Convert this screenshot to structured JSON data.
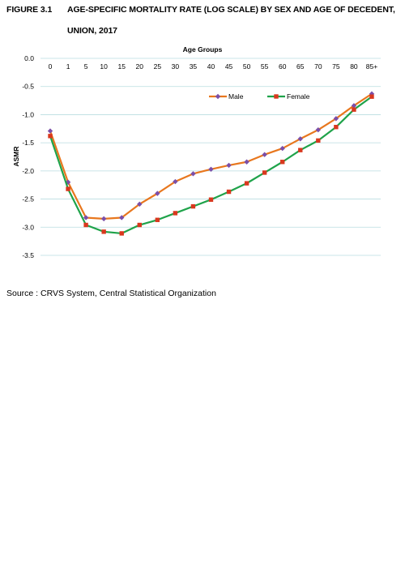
{
  "figure": {
    "label": "FIGURE 3.1",
    "title_line1": "AGE-SPECIFIC MORTALITY RATE (LOG SCALE) BY SEX AND AGE OF DECEDENT,",
    "title_line2": "UNION, 2017"
  },
  "source": "Source : CRVS System, Central Statistical Organization",
  "chart_data": {
    "type": "line",
    "xlabel": "Age Groups",
    "ylabel": "ASMR",
    "categories": [
      "0",
      "1",
      "5",
      "10",
      "15",
      "20",
      "25",
      "30",
      "35",
      "40",
      "45",
      "50",
      "55",
      "60",
      "65",
      "70",
      "75",
      "80",
      "85+"
    ],
    "yticks": [
      "0.0",
      "-0.5",
      "-1.0",
      "-1.5",
      "-2.0",
      "-2.5",
      "-3.0",
      "-3.5"
    ],
    "ylim": [
      -3.5,
      0.0
    ],
    "grid": true,
    "legend_position": "top-right",
    "series": [
      {
        "name": "Male",
        "color": "#E8771E",
        "marker_color": "#7B4FA8",
        "values": [
          -1.29,
          -2.2,
          -2.83,
          -2.85,
          -2.83,
          -2.59,
          -2.4,
          -2.19,
          -2.05,
          -1.97,
          -1.9,
          -1.84,
          -1.71,
          -1.6,
          -1.43,
          -1.27,
          -1.07,
          -0.84,
          -0.63
        ]
      },
      {
        "name": "Female",
        "color": "#1FA34A",
        "marker_color": "#D9381E",
        "values": [
          -1.38,
          -2.32,
          -2.96,
          -3.08,
          -3.11,
          -2.96,
          -2.87,
          -2.75,
          -2.63,
          -2.51,
          -2.37,
          -2.22,
          -2.03,
          -1.84,
          -1.63,
          -1.46,
          -1.22,
          -0.91,
          -0.68
        ]
      }
    ]
  }
}
